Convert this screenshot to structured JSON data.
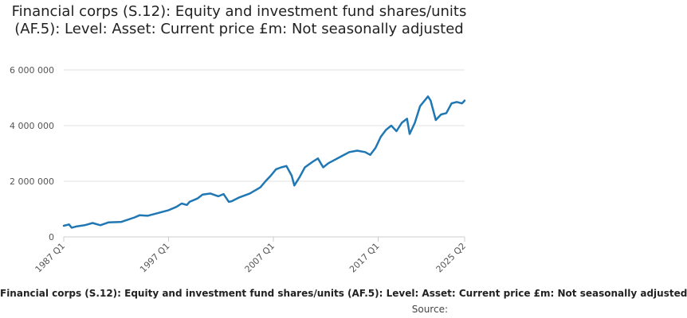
{
  "chart_data": {
    "type": "line",
    "title": "Financial corps (S.12): Equity and investment fund shares/units (AF.5): Level: Asset: Current price £m: Not seasonally adjusted",
    "xlabel": "",
    "ylabel": "",
    "x_tick_labels": [
      "1987 Q1",
      "1997 Q1",
      "2007 Q1",
      "2017 Q1",
      "2025 Q2"
    ],
    "y_tick_labels": [
      "0",
      "2 000 000",
      "4 000 000",
      "6 000 000"
    ],
    "y_ticks": [
      0,
      2000000,
      4000000,
      6000000
    ],
    "ylim": [
      0,
      6000000
    ],
    "xlim": [
      "1987 Q1",
      "2025 Q2"
    ],
    "grid": true,
    "legend_position": "bottom",
    "series": [
      {
        "name": "Financial corps (S.12): Equity and investment fund shares/units (AF.5): Level: Asset: Current price £m: Not seasonally adjusted",
        "color": "#1f77b4",
        "points": [
          [
            "1987 Q1",
            400000
          ],
          [
            "1987 Q3",
            450000
          ],
          [
            "1987 Q4",
            330000
          ],
          [
            "1988 Q2",
            380000
          ],
          [
            "1989 Q1",
            420000
          ],
          [
            "1989 Q4",
            500000
          ],
          [
            "1990 Q3",
            420000
          ],
          [
            "1991 Q2",
            520000
          ],
          [
            "1992 Q3",
            540000
          ],
          [
            "1993 Q4",
            700000
          ],
          [
            "1994 Q2",
            780000
          ],
          [
            "1995 Q1",
            760000
          ],
          [
            "1996 Q1",
            860000
          ],
          [
            "1997 Q1",
            960000
          ],
          [
            "1997 Q4",
            1080000
          ],
          [
            "1998 Q2",
            1200000
          ],
          [
            "1998 Q4",
            1150000
          ],
          [
            "1999 Q1",
            1260000
          ],
          [
            "1999 Q4",
            1380000
          ],
          [
            "2000 Q2",
            1520000
          ],
          [
            "2001 Q1",
            1560000
          ],
          [
            "2001 Q4",
            1460000
          ],
          [
            "2002 Q2",
            1540000
          ],
          [
            "2002 Q4",
            1260000
          ],
          [
            "2003 Q1",
            1280000
          ],
          [
            "2003 Q4",
            1420000
          ],
          [
            "2004 Q4",
            1560000
          ],
          [
            "2005 Q4",
            1780000
          ],
          [
            "2006 Q2",
            2000000
          ],
          [
            "2006 Q4",
            2200000
          ],
          [
            "2007 Q2",
            2430000
          ],
          [
            "2007 Q4",
            2500000
          ],
          [
            "2008 Q2",
            2550000
          ],
          [
            "2008 Q4",
            2200000
          ],
          [
            "2009 Q1",
            1850000
          ],
          [
            "2009 Q3",
            2150000
          ],
          [
            "2010 Q1",
            2500000
          ],
          [
            "2010 Q4",
            2700000
          ],
          [
            "2011 Q2",
            2820000
          ],
          [
            "2011 Q4",
            2500000
          ],
          [
            "2012 Q2",
            2650000
          ],
          [
            "2012 Q4",
            2750000
          ],
          [
            "2013 Q3",
            2900000
          ],
          [
            "2014 Q2",
            3050000
          ],
          [
            "2015 Q1",
            3100000
          ],
          [
            "2015 Q4",
            3050000
          ],
          [
            "2016 Q2",
            2950000
          ],
          [
            "2016 Q4",
            3200000
          ],
          [
            "2017 Q2",
            3600000
          ],
          [
            "2017 Q4",
            3850000
          ],
          [
            "2018 Q2",
            4000000
          ],
          [
            "2018 Q4",
            3800000
          ],
          [
            "2019 Q2",
            4100000
          ],
          [
            "2019 Q4",
            4250000
          ],
          [
            "2020 Q1",
            3700000
          ],
          [
            "2020 Q3",
            4100000
          ],
          [
            "2021 Q1",
            4700000
          ],
          [
            "2021 Q4",
            5050000
          ],
          [
            "2022 Q1",
            4900000
          ],
          [
            "2022 Q3",
            4200000
          ],
          [
            "2023 Q1",
            4400000
          ],
          [
            "2023 Q3",
            4450000
          ],
          [
            "2024 Q1",
            4800000
          ],
          [
            "2024 Q3",
            4850000
          ],
          [
            "2025 Q1",
            4800000
          ],
          [
            "2025 Q2",
            4900000
          ]
        ]
      }
    ],
    "source_label": "Source:"
  }
}
